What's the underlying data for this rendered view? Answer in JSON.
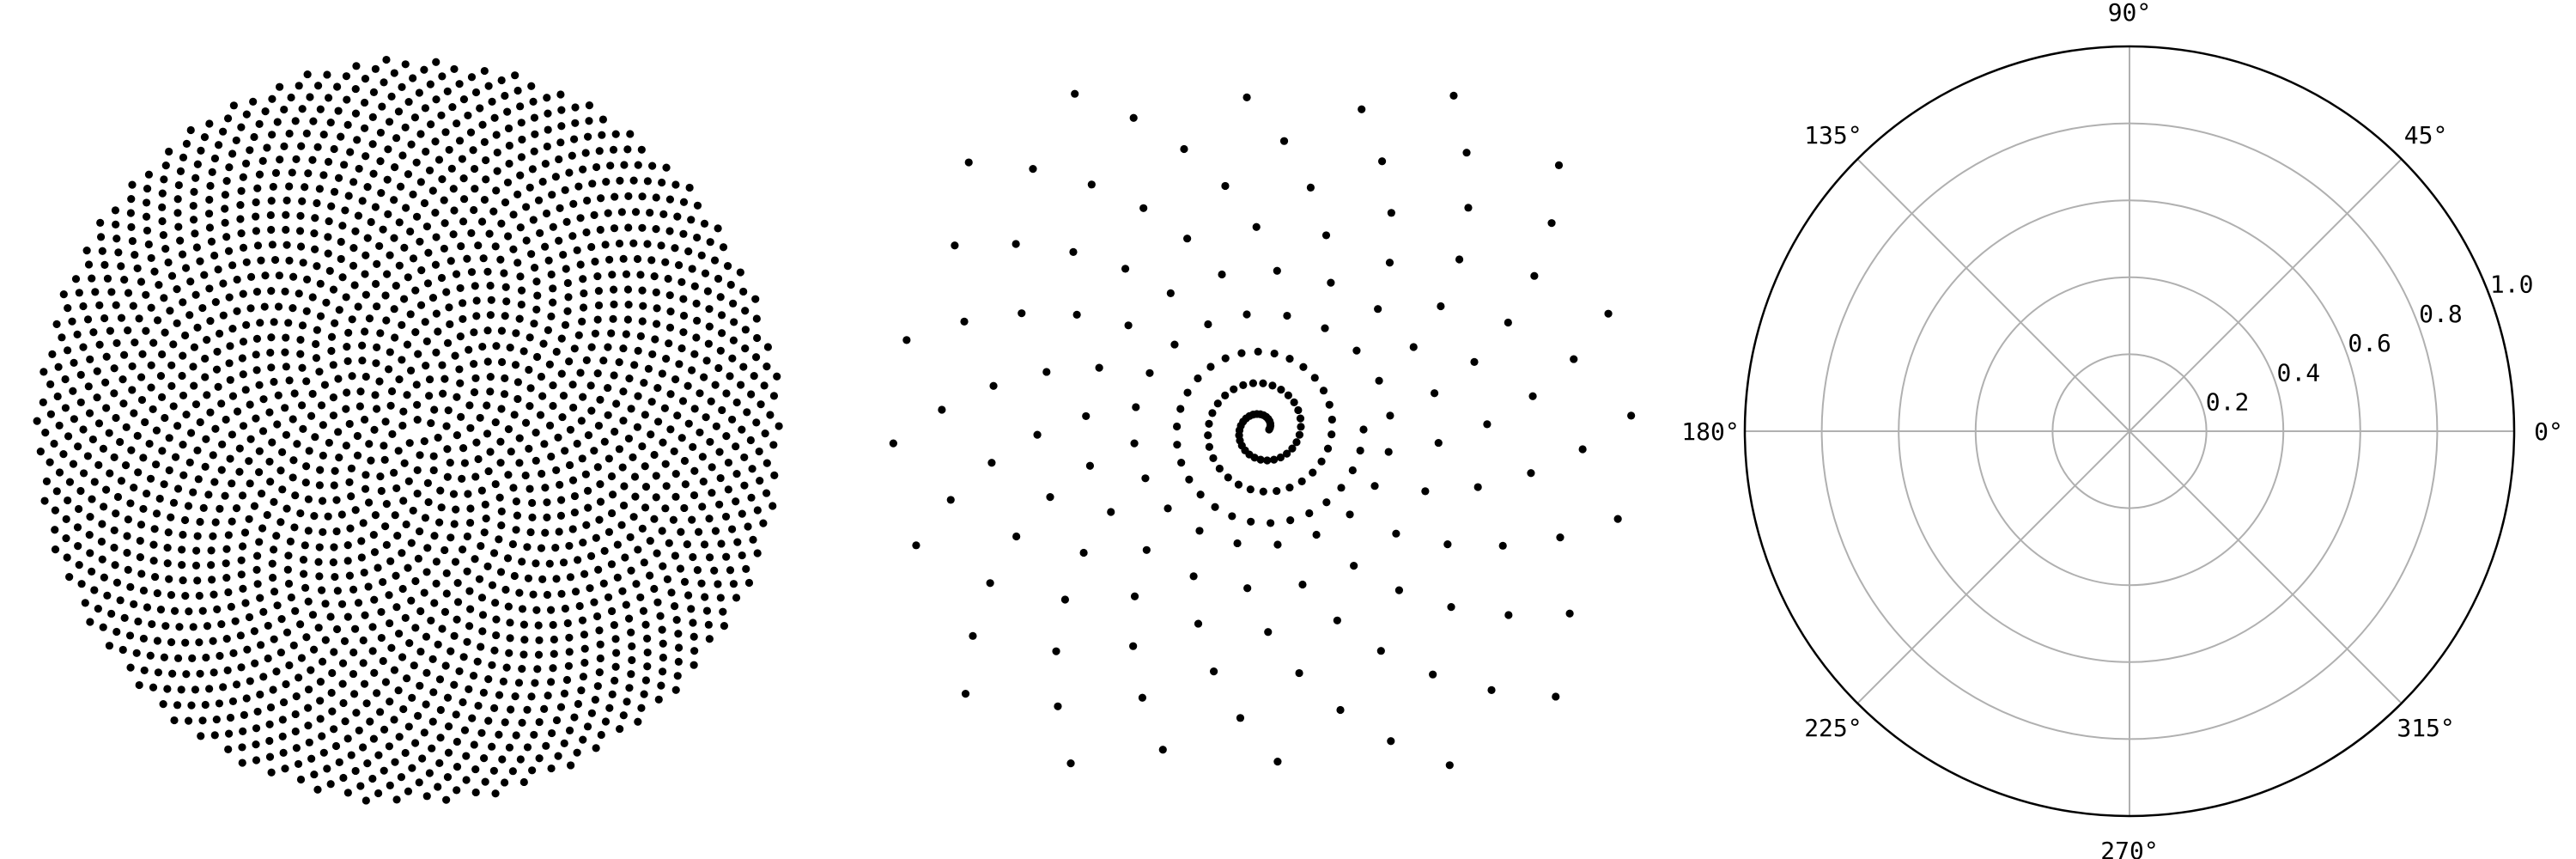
{
  "colors": {
    "background": "#ffffff",
    "point": "#000000",
    "grid": "#b0b0b0",
    "frame": "#000000"
  },
  "chart_data": [
    {
      "type": "scatter",
      "pattern": "sunflower spiral (phyllotaxis, golden angle)",
      "points": 2000,
      "golden_angle_deg": 137.508,
      "radius_law": "sqrt",
      "axes_visible": false,
      "grid": false
    },
    {
      "type": "scatter",
      "pattern": "spiral core with radial spokes",
      "spiral_turns": 3,
      "spoke_count": 20,
      "axes_visible": false,
      "grid": false
    },
    {
      "type": "polar",
      "series": [],
      "angle_ticks": [
        "0°",
        "45°",
        "90°",
        "135°",
        "180°",
        "225°",
        "270°",
        "315°"
      ],
      "angle_tick_values": [
        0,
        45,
        90,
        135,
        180,
        225,
        270,
        315
      ],
      "radial_ticks": [
        "0.2",
        "0.4",
        "0.6",
        "0.8",
        "1.0"
      ],
      "radial_tick_values": [
        0.2,
        0.4,
        0.6,
        0.8,
        1.0
      ],
      "rlim": [
        0,
        1
      ],
      "grid": true
    }
  ]
}
